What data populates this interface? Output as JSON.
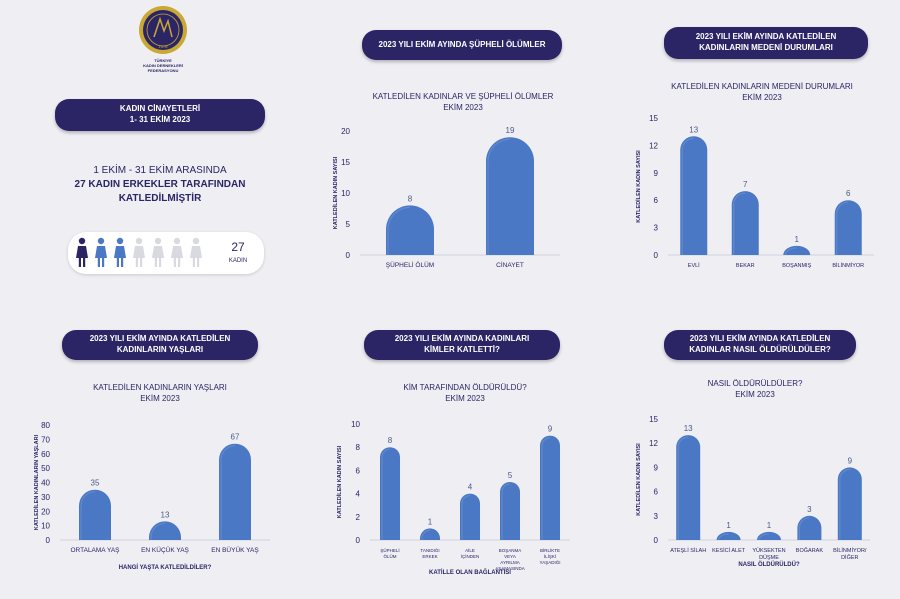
{
  "org": {
    "name_line1": "TÜRKİYE",
    "name_line2": "KADIN DERNEKLERİ",
    "name_line3": "FEDERASYONU",
    "seal_year": "1976",
    "seal_letters": "TKDF"
  },
  "main_banner": {
    "line1": "KADIN CİNAYETLERİ",
    "line2": "1- 31 EKİM 2023"
  },
  "headline": {
    "line1": "1 EKİM - 31 EKİM ARASINDA",
    "line2": "27 KADIN ERKEKLER TARAFINDAN",
    "line3": "KATLEDİLMİŞTİR"
  },
  "counter": {
    "value": "27",
    "unit": "KADIN",
    "filled": 3,
    "total": 8
  },
  "colors": {
    "navy": "#2b2566",
    "bar": "#4a78c4",
    "bar_light": "#6f96d6",
    "bg": "#eeeef3",
    "icon_filled_dark": "#2b2566",
    "icon_filled_blue": "#4a78c4",
    "icon_empty": "#d9d9e0"
  },
  "chart_data": [
    {
      "type": "bar",
      "banner": [
        "2023 YILI EKİM AYINDA ŞÜPHELİ ÖLÜMLER"
      ],
      "title": [
        "KATLEDİLEN KADINLAR VE ŞÜPHELİ ÖLÜMLER",
        "EKİM 2023"
      ],
      "categories": [
        [
          "ŞÜPHELİ ÖLÜM"
        ],
        [
          "CİNAYET"
        ]
      ],
      "values": [
        8,
        19
      ],
      "ylabel": "KATLEDİLEN KADIN SAYISI",
      "xlabel": "",
      "ylim": [
        0,
        20
      ],
      "yticks": [
        0,
        5,
        10,
        15,
        20
      ]
    },
    {
      "type": "bar",
      "banner": [
        "2023 YILI EKİM AYINDA KATLEDİLEN",
        "KADINLARIN MEDENİ DURUMLARI"
      ],
      "title": [
        "KATLEDİLEN KADINLARIN MEDENİ DURUMLARI",
        "EKİM 2023"
      ],
      "categories": [
        [
          "EVLİ"
        ],
        [
          "BEKAR"
        ],
        [
          "BOŞANMIŞ"
        ],
        [
          "BİLİNMİYOR"
        ]
      ],
      "values": [
        13,
        7,
        1,
        6
      ],
      "ylabel": "KATLEDİLEN KADIN SAYISI",
      "xlabel": "",
      "ylim": [
        0,
        15
      ],
      "yticks": [
        0,
        3,
        6,
        9,
        12,
        15
      ]
    },
    {
      "type": "bar",
      "banner": [
        "2023 YILI EKİM AYINDA KATLEDİLEN",
        "KADINLARIN YAŞLARI"
      ],
      "title": [
        "KATLEDİLEN KADINLARIN YAŞLARI",
        "EKİM 2023"
      ],
      "categories": [
        [
          "ORTALAMA YAŞ"
        ],
        [
          "EN KÜÇÜK YAŞ"
        ],
        [
          "EN BÜYÜK YAŞ"
        ]
      ],
      "values": [
        35,
        13,
        67
      ],
      "ylabel": "KATLEDİLEN KADINLARIN YAŞLARI",
      "xlabel": "HANGİ YAŞTA KATLEDİLDİLER?",
      "ylim": [
        0,
        80
      ],
      "yticks": [
        0,
        10,
        20,
        30,
        40,
        50,
        60,
        70,
        80
      ]
    },
    {
      "type": "bar",
      "banner": [
        "2023 YILI EKİM AYINDA KADINLARI",
        "KİMLER KATLETTİ?"
      ],
      "title": [
        "KİM TARAFINDAN ÖLDÜRÜLDÜ?",
        "EKİM 2023"
      ],
      "categories": [
        [
          "ŞÜPHELİ",
          "ÖLÜM"
        ],
        [
          "TANIDIĞI",
          "ERKEK"
        ],
        [
          "AİLE",
          "İÇİNDEN"
        ],
        [
          "BOŞANMA",
          "VEYA",
          "AYRILMA",
          "AŞAMASINDA"
        ],
        [
          "BİRLİKTE",
          "İLİŞKİ",
          "YAŞADIĞI"
        ]
      ],
      "values": [
        8,
        1,
        4,
        5,
        9
      ],
      "ylabel": "KATLEDİLEN KADIN SAYISI",
      "xlabel": "KATİLLE OLAN BAĞLANTISI",
      "ylim": [
        0,
        10
      ],
      "yticks": [
        0,
        2,
        4,
        6,
        8,
        10
      ]
    },
    {
      "type": "bar",
      "banner": [
        "2023 YILI EKİM AYINDA KATLEDİLEN",
        "KADINLAR NASIL ÖLDÜRÜLDÜLER?"
      ],
      "title": [
        "NASIL ÖLDÜRÜLDÜLER?",
        "EKİM 2023"
      ],
      "categories": [
        [
          "ATEŞLİ SİLAH"
        ],
        [
          "KESİCİ ALET"
        ],
        [
          "YÜKSEKTEN",
          "DÜŞME"
        ],
        [
          "BOĞARAK"
        ],
        [
          "BİLİNMİYOR/",
          "DİĞER"
        ]
      ],
      "values": [
        13,
        1,
        1,
        3,
        9
      ],
      "ylabel": "KATLEDİLEN KADIN SAYISI",
      "xlabel": "NASIL ÖLDÜRÜLDÜ?",
      "ylim": [
        0,
        15
      ],
      "yticks": [
        0,
        3,
        6,
        9,
        12,
        15
      ]
    }
  ]
}
